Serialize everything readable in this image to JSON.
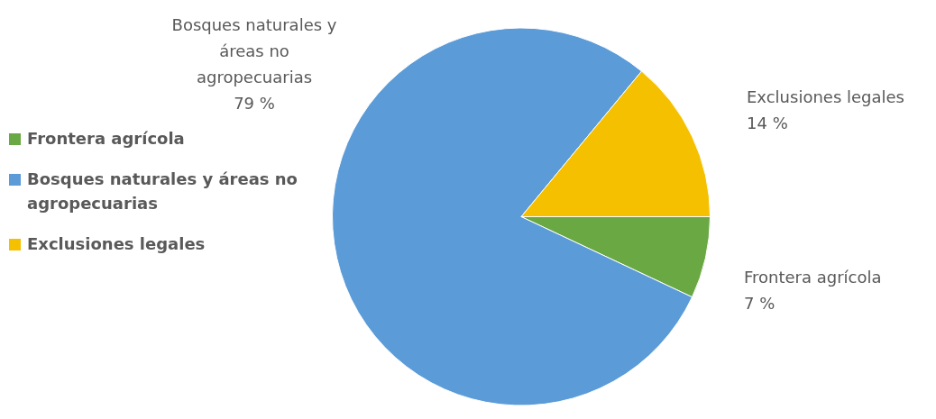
{
  "chart_data": {
    "type": "pie",
    "categories": [
      "Frontera agrícola",
      "Bosques naturales y áreas no agropecuarias",
      "Exclusiones legales"
    ],
    "values": [
      7,
      79,
      14
    ],
    "colors": [
      "#6aa843",
      "#5b9bd8",
      "#f5c000"
    ],
    "value_labels": [
      "7 %",
      "79 %",
      "14 %"
    ],
    "legend": "left"
  }
}
